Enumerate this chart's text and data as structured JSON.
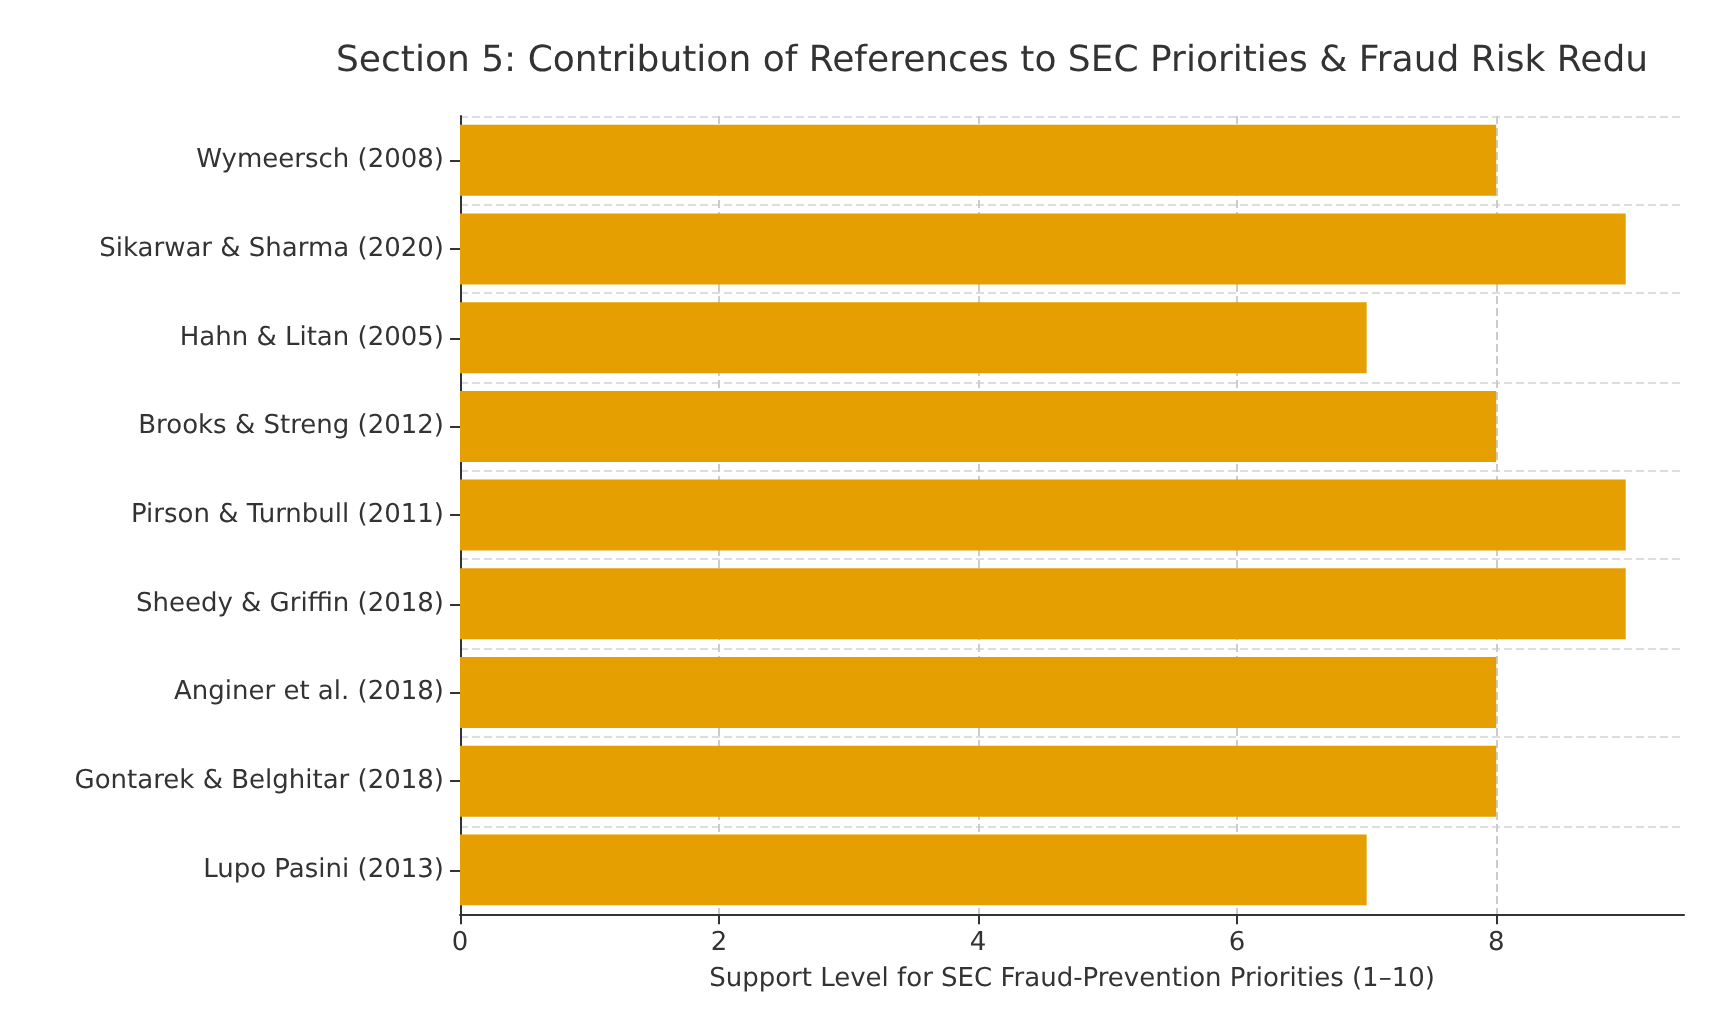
{
  "chart_data": {
    "type": "bar",
    "orientation": "horizontal",
    "title": "Section 5: Contribution of References to SEC Priorities & Fraud Risk Redu",
    "xlabel": "Support Level for SEC Fraud-Prevention Priorities (1–10)",
    "categories": [
      "Wymeersch (2008)",
      "Sikarwar & Sharma (2020)",
      "Hahn & Litan (2005)",
      "Brooks & Streng (2012)",
      "Pirson & Turnbull (2011)",
      "Sheedy & Griffin (2018)",
      "Anginer et al. (2018)",
      "Gontarek & Belghitar (2018)",
      "Lupo Pasini (2013)"
    ],
    "values": [
      8,
      9,
      7,
      8,
      9,
      9,
      8,
      8,
      7
    ],
    "color": "#e69f00",
    "xlim": [
      0,
      9.45
    ],
    "xticks": [
      0,
      2,
      4,
      6,
      8
    ],
    "grid": true
  }
}
